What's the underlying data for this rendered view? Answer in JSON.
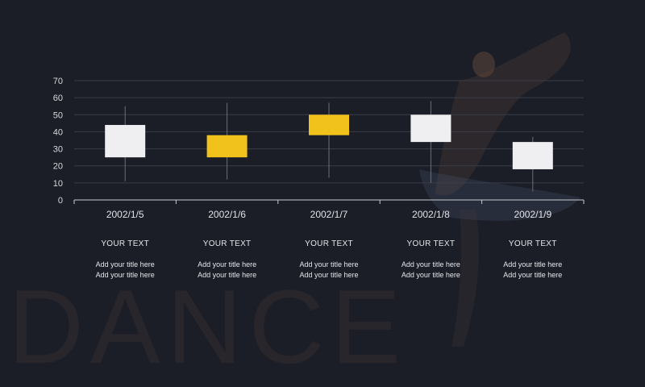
{
  "background_word": "DANCE",
  "colors": {
    "background": "#1b1e27",
    "box_light": "#efeff1",
    "box_accent": "#f1c21b",
    "wick": "#6b6e78",
    "grid": "#3a3d47",
    "axis": "#c9c9cd"
  },
  "chart_data": {
    "type": "candlestick",
    "categories": [
      "2002/1/5",
      "2002/1/6",
      "2002/1/7",
      "2002/1/8",
      "2002/1/9"
    ],
    "series": [
      {
        "category": "2002/1/5",
        "high": 55,
        "open": 44,
        "close": 25,
        "low": 11,
        "color": "light"
      },
      {
        "category": "2002/1/6",
        "high": 57,
        "open": 25,
        "close": 38,
        "low": 12,
        "color": "accent"
      },
      {
        "category": "2002/1/7",
        "high": 57,
        "open": 38,
        "close": 50,
        "low": 13,
        "color": "accent"
      },
      {
        "category": "2002/1/8",
        "high": 58,
        "open": 50,
        "close": 34,
        "low": 10,
        "color": "light"
      },
      {
        "category": "2002/1/9",
        "high": 37,
        "open": 34,
        "close": 18,
        "low": 5,
        "color": "light"
      }
    ],
    "yticks": [
      0,
      10,
      20,
      30,
      40,
      50,
      60,
      70
    ],
    "ylim": [
      0,
      70
    ],
    "grid": true
  },
  "captions": [
    {
      "title": "YOUR TEXT",
      "line1": "Add your title here",
      "line2": "Add your title here"
    },
    {
      "title": "YOUR TEXT",
      "line1": "Add your title here",
      "line2": "Add your title here"
    },
    {
      "title": "YOUR TEXT",
      "line1": "Add your title here",
      "line2": "Add your title here"
    },
    {
      "title": "YOUR TEXT",
      "line1": "Add your title here",
      "line2": "Add your title here"
    },
    {
      "title": "YOUR TEXT",
      "line1": "Add your title here",
      "line2": "Add your title here"
    }
  ]
}
